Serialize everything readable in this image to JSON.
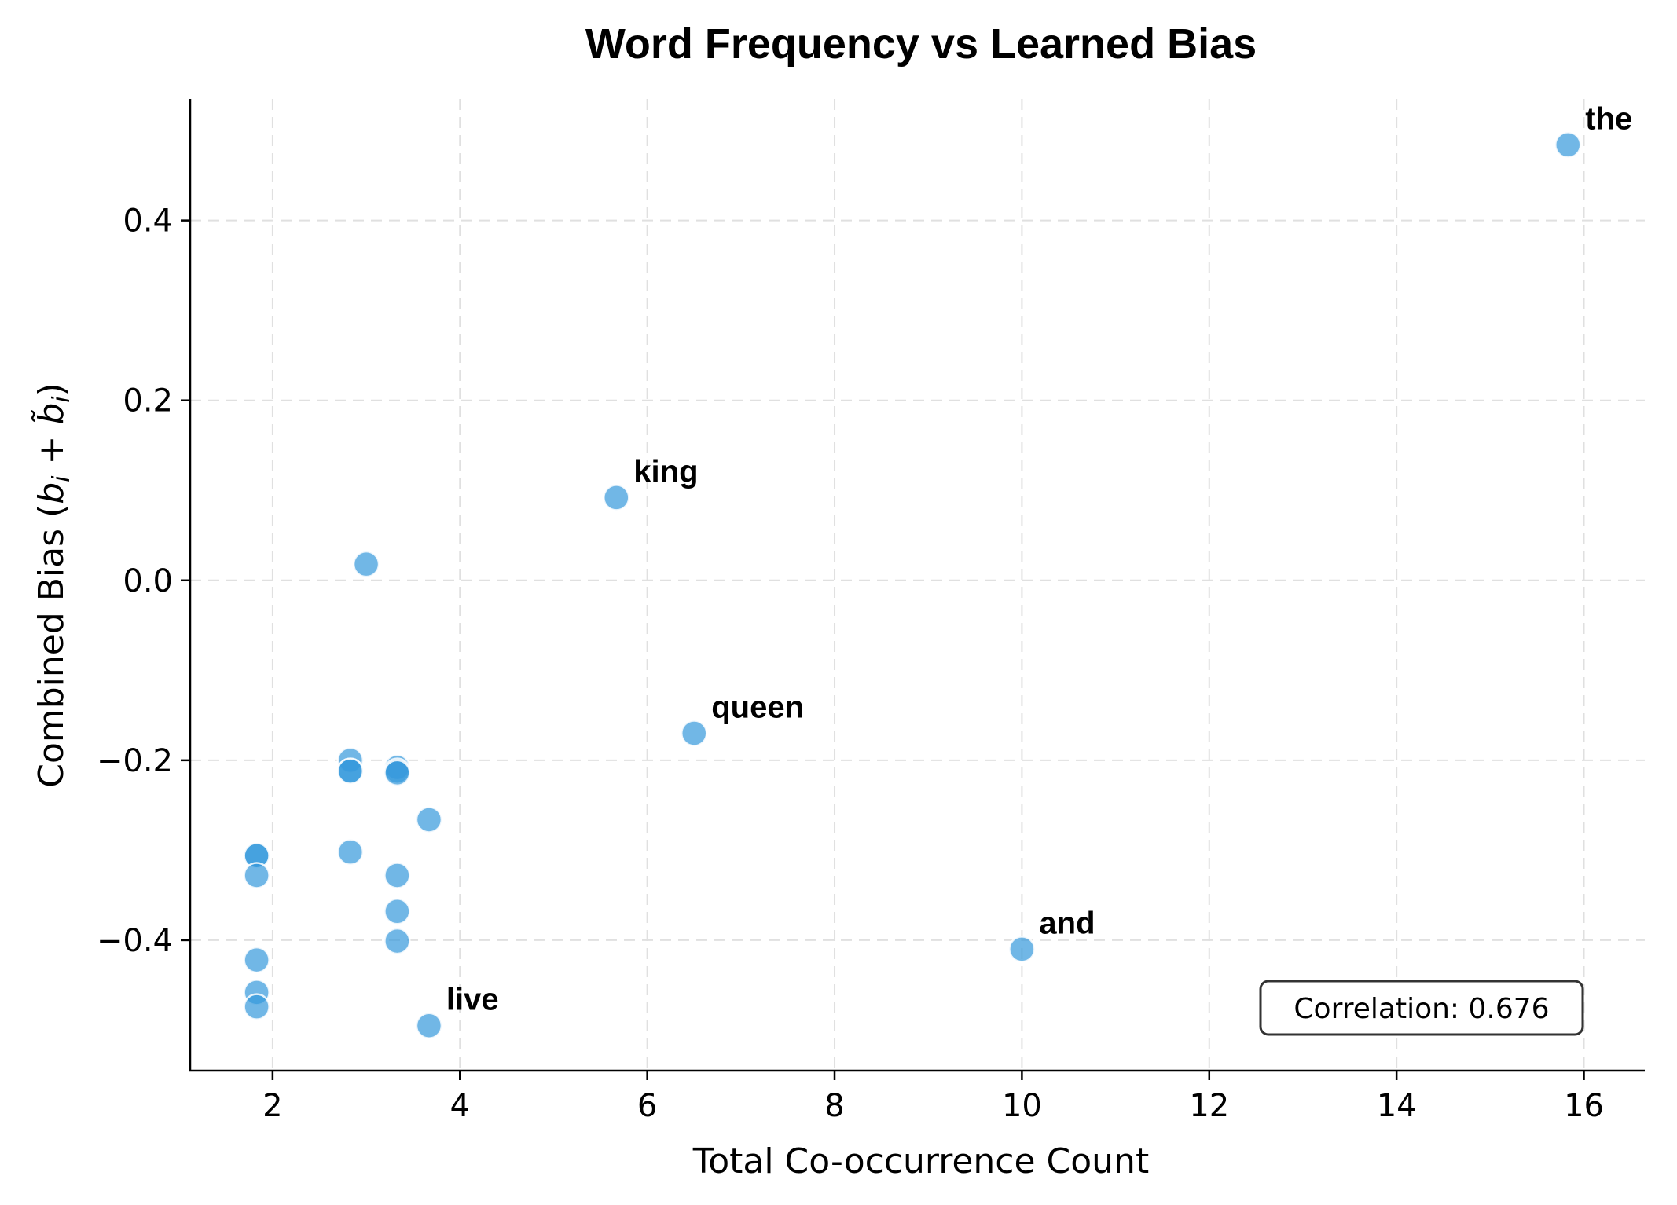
{
  "chart_data": {
    "type": "scatter",
    "title": "Word Frequency vs Learned Bias",
    "xlabel": "Total Co-occurrence Count",
    "ylabel": "Combined Bias (b_i + b̃_i)",
    "xlim": [
      1.12,
      16.65
    ],
    "ylim": [
      -0.545,
      0.535
    ],
    "xticks": [
      2,
      4,
      6,
      8,
      10,
      12,
      14,
      16
    ],
    "xtick_labels": [
      "2",
      "4",
      "6",
      "8",
      "10",
      "12",
      "14",
      "16"
    ],
    "yticks": [
      -0.4,
      -0.2,
      0.0,
      0.2,
      0.4
    ],
    "ytick_labels": [
      "−0.4",
      "−0.2",
      "0.0",
      "0.2",
      "0.4"
    ],
    "grid": true,
    "marker_color": "#3498db",
    "marker_alpha": 0.7,
    "marker_edge": "#ffffff",
    "points": [
      {
        "x": 15.83,
        "y": 0.484,
        "label": "the"
      },
      {
        "x": 5.67,
        "y": 0.092,
        "label": "king"
      },
      {
        "x": 6.5,
        "y": -0.17,
        "label": "queen"
      },
      {
        "x": 10.0,
        "y": -0.41,
        "label": "and"
      },
      {
        "x": 3.67,
        "y": -0.495,
        "label": "live"
      },
      {
        "x": 3.0,
        "y": 0.018,
        "label": ""
      },
      {
        "x": 2.83,
        "y": -0.2,
        "label": ""
      },
      {
        "x": 2.83,
        "y": -0.212,
        "label": ""
      },
      {
        "x": 2.83,
        "y": -0.212,
        "label": ""
      },
      {
        "x": 3.33,
        "y": -0.208,
        "label": ""
      },
      {
        "x": 3.33,
        "y": -0.212,
        "label": ""
      },
      {
        "x": 3.33,
        "y": -0.214,
        "label": ""
      },
      {
        "x": 3.67,
        "y": -0.266,
        "label": ""
      },
      {
        "x": 2.83,
        "y": -0.302,
        "label": ""
      },
      {
        "x": 3.33,
        "y": -0.328,
        "label": ""
      },
      {
        "x": 3.33,
        "y": -0.368,
        "label": ""
      },
      {
        "x": 3.33,
        "y": -0.401,
        "label": ""
      },
      {
        "x": 1.83,
        "y": -0.306,
        "label": ""
      },
      {
        "x": 1.83,
        "y": -0.306,
        "label": ""
      },
      {
        "x": 1.83,
        "y": -0.328,
        "label": ""
      },
      {
        "x": 1.83,
        "y": -0.422,
        "label": ""
      },
      {
        "x": 1.83,
        "y": -0.458,
        "label": ""
      },
      {
        "x": 1.83,
        "y": -0.474,
        "label": ""
      }
    ],
    "annotation": "Correlation: 0.676",
    "correlation": 0.676
  },
  "labels": {
    "title": "Word Frequency vs Learned Bias",
    "xlabel": "Total Co-occurrence Count",
    "ylabel_prefix": "Combined Bias (",
    "ylabel_b1": "b",
    "ylabel_i1": "i",
    "ylabel_plus": " + ",
    "ylabel_b2": "b̃",
    "ylabel_i2": "i",
    "ylabel_suffix": ")",
    "correlation": "Correlation: 0.676"
  }
}
